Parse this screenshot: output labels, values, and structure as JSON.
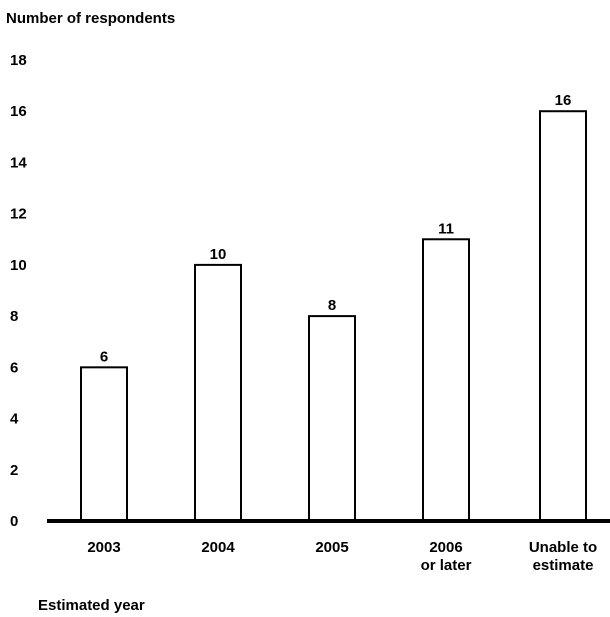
{
  "chart_data": {
    "type": "bar",
    "ylabel": "Number of respondents",
    "xlabel": "Estimated year",
    "categories": [
      [
        "2003"
      ],
      [
        "2004"
      ],
      [
        "2005"
      ],
      [
        "2006",
        "or later"
      ],
      [
        "Unable to",
        "estimate"
      ]
    ],
    "values": [
      6,
      10,
      8,
      11,
      16
    ],
    "yticks": [
      0,
      2,
      4,
      6,
      8,
      10,
      12,
      14,
      16,
      18
    ],
    "ylim": [
      0,
      18
    ],
    "grid": false,
    "bar_fill": "#ffffff",
    "bar_stroke": "#000000"
  }
}
